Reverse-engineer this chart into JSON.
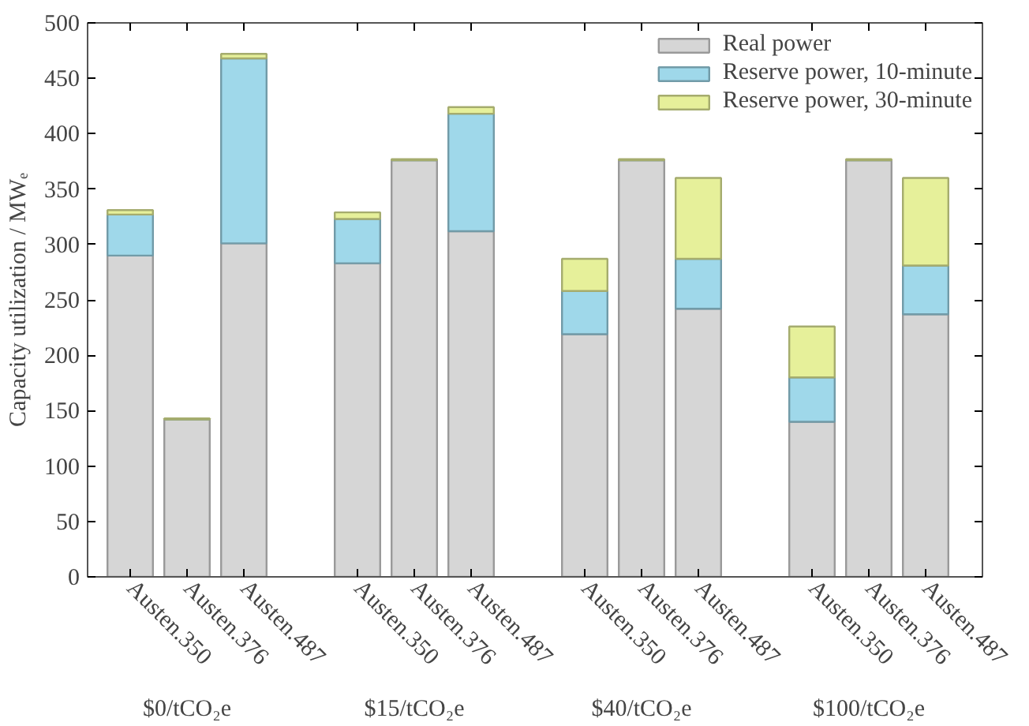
{
  "chart_data": {
    "type": "bar",
    "stacked": true,
    "ylabel": "Capacity utilization / MWₑ",
    "categories": [
      "Austen.350",
      "Austen.376",
      "Austen.487",
      null,
      "Austen.350",
      "Austen.376",
      "Austen.487",
      null,
      "Austen.350",
      "Austen.376",
      "Austen.487",
      null,
      "Austen.350",
      "Austen.376",
      "Austen.487"
    ],
    "series": [
      {
        "name": "Real power",
        "color": "#d6d6d6",
        "values": [
          290,
          142,
          301,
          null,
          283,
          376,
          312,
          null,
          219,
          376,
          242,
          null,
          140,
          376,
          237
        ]
      },
      {
        "name": "Reserve power, 10-minute",
        "color": "#9fd8ea",
        "values": [
          37,
          0,
          167,
          null,
          40,
          0,
          106,
          null,
          39,
          0,
          45,
          null,
          40,
          0,
          44
        ]
      },
      {
        "name": "Reserve power, 30-minute",
        "color": "#e6f09a",
        "values": [
          4,
          1,
          4,
          null,
          6,
          1,
          6,
          null,
          29,
          1,
          73,
          null,
          46,
          1,
          79
        ]
      }
    ],
    "annotations": [
      "$0/tCO₂e",
      "$15/tCO₂e",
      "$40/tCO₂e",
      "$100/tCO₂e"
    ],
    "ylim": [
      0,
      500
    ],
    "yticks": [
      0,
      50,
      100,
      150,
      200,
      250,
      300,
      350,
      400,
      450,
      500
    ],
    "grid": false,
    "legend": "top right"
  }
}
